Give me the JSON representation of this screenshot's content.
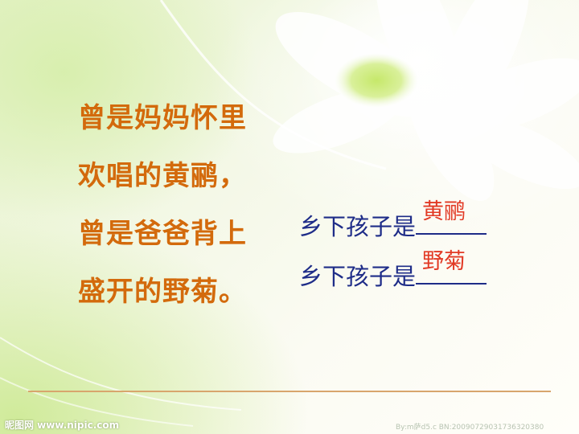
{
  "poem": {
    "lines": [
      "曾是妈妈怀里",
      "欢唱的黄鹂，",
      "曾是爸爸背上",
      "盛开的野菊。"
    ]
  },
  "answers": [
    {
      "prefix": "乡下孩子是",
      "fill": "黄鹂"
    },
    {
      "prefix": "乡下孩子是",
      "fill": "野菊"
    }
  ],
  "watermark": {
    "left": "昵图网 www.nipic.com",
    "right": "By:m萨d5.c BN:20090729031736320380"
  },
  "colors": {
    "poem_text": "#d36a0c",
    "answer_text": "#1e2c88",
    "fill_text": "#e23a25",
    "divider": "#d8a56d"
  }
}
